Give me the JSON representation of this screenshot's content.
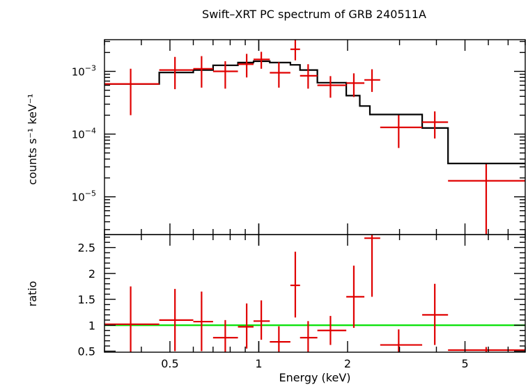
{
  "chart_data": [
    {
      "type": "scatter",
      "title": "Swift–XRT PC spectrum of GRB 240511A",
      "ylabel": "counts s⁻¹ keV⁻¹",
      "xscale": "log",
      "yscale": "log",
      "xlim": [
        0.3,
        8.0
      ],
      "ylim": [
        2.5e-06,
        0.0032
      ],
      "ytick_labels": [
        {
          "value": 0.001,
          "base": "10",
          "exp": "−3"
        },
        {
          "value": 0.0001,
          "base": "10",
          "exp": "−4"
        },
        {
          "value": 1e-05,
          "base": "10",
          "exp": "−5"
        }
      ],
      "series": [
        {
          "kind": "data",
          "color": "#e00000",
          "points": [
            {
              "x": 0.368,
              "xlo": 0.3,
              "xhi": 0.46,
              "y": 0.00063,
              "ylo": 0.0002,
              "yhi": 0.0011
            },
            {
              "x": 0.52,
              "xlo": 0.46,
              "xhi": 0.6,
              "y": 0.00105,
              "ylo": 0.00052,
              "yhi": 0.0017
            },
            {
              "x": 0.64,
              "xlo": 0.6,
              "xhi": 0.7,
              "y": 0.0011,
              "ylo": 0.00055,
              "yhi": 0.00175
            },
            {
              "x": 0.77,
              "xlo": 0.7,
              "xhi": 0.85,
              "y": 0.001,
              "ylo": 0.00053,
              "yhi": 0.00145
            },
            {
              "x": 0.91,
              "xlo": 0.85,
              "xhi": 0.96,
              "y": 0.0013,
              "ylo": 0.0008,
              "yhi": 0.0019
            },
            {
              "x": 1.02,
              "xlo": 0.96,
              "xhi": 1.09,
              "y": 0.00155,
              "ylo": 0.0011,
              "yhi": 0.00205
            },
            {
              "x": 1.17,
              "xlo": 1.09,
              "xhi": 1.28,
              "y": 0.00095,
              "ylo": 0.00055,
              "yhi": 0.0014
            },
            {
              "x": 1.33,
              "xlo": 1.28,
              "xhi": 1.38,
              "y": 0.00225,
              "ylo": 0.0015,
              "yhi": 0.0032
            },
            {
              "x": 1.47,
              "xlo": 1.38,
              "xhi": 1.58,
              "y": 0.00085,
              "ylo": 0.00053,
              "yhi": 0.0013
            },
            {
              "x": 1.75,
              "xlo": 1.58,
              "xhi": 1.98,
              "y": 0.0006,
              "ylo": 0.00038,
              "yhi": 0.00084
            },
            {
              "x": 2.1,
              "xlo": 1.98,
              "xhi": 2.28,
              "y": 0.00065,
              "ylo": 0.00039,
              "yhi": 0.00093
            },
            {
              "x": 2.42,
              "xlo": 2.28,
              "xhi": 2.58,
              "y": 0.00073,
              "ylo": 0.00047,
              "yhi": 0.00108
            },
            {
              "x": 2.98,
              "xlo": 2.58,
              "xhi": 3.58,
              "y": 0.000128,
              "ylo": 6e-05,
              "yhi": 0.0002
            },
            {
              "x": 3.95,
              "xlo": 3.58,
              "xhi": 4.38,
              "y": 0.000155,
              "ylo": 8.5e-05,
              "yhi": 0.00023
            },
            {
              "x": 5.9,
              "xlo": 4.38,
              "xhi": 8.0,
              "y": 1.8e-05,
              "ylo": 2.5e-06,
              "yhi": 3.3e-05
            }
          ]
        },
        {
          "kind": "model",
          "color": "#000000",
          "steps": [
            {
              "xlo": 0.3,
              "xhi": 0.46,
              "y": 0.00063
            },
            {
              "xlo": 0.46,
              "xhi": 0.6,
              "y": 0.00096
            },
            {
              "xlo": 0.6,
              "xhi": 0.7,
              "y": 0.00105
            },
            {
              "xlo": 0.7,
              "xhi": 0.85,
              "y": 0.00125
            },
            {
              "xlo": 0.85,
              "xhi": 0.96,
              "y": 0.00138
            },
            {
              "xlo": 0.96,
              "xhi": 1.09,
              "y": 0.00145
            },
            {
              "xlo": 1.09,
              "xhi": 1.28,
              "y": 0.00138
            },
            {
              "xlo": 1.28,
              "xhi": 1.38,
              "y": 0.00127
            },
            {
              "xlo": 1.38,
              "xhi": 1.58,
              "y": 0.00105
            },
            {
              "xlo": 1.58,
              "xhi": 1.98,
              "y": 0.00066
            },
            {
              "xlo": 1.98,
              "xhi": 2.2,
              "y": 0.00041
            },
            {
              "xlo": 2.2,
              "xhi": 2.38,
              "y": 0.00028
            },
            {
              "xlo": 2.38,
              "xhi": 2.58,
              "y": 0.000205
            },
            {
              "xlo": 2.58,
              "xhi": 3.58,
              "y": 0.000205
            },
            {
              "xlo": 3.58,
              "xhi": 4.38,
              "y": 0.000125
            },
            {
              "xlo": 4.38,
              "xhi": 8.0,
              "y": 3.4e-05
            }
          ]
        }
      ]
    },
    {
      "type": "scatter",
      "xlabel": "Energy (keV)",
      "ylabel": "ratio",
      "xscale": "log",
      "yscale": "linear",
      "xlim": [
        0.3,
        8.0
      ],
      "ylim": [
        0.48,
        2.75
      ],
      "xticks": [
        {
          "value": 0.5,
          "label": "0.5"
        },
        {
          "value": 1,
          "label": "1"
        },
        {
          "value": 2,
          "label": "2"
        },
        {
          "value": 5,
          "label": "5"
        }
      ],
      "yticks": [
        {
          "value": 0.5,
          "label": "0.5"
        },
        {
          "value": 1,
          "label": "1"
        },
        {
          "value": 1.5,
          "label": "1.5"
        },
        {
          "value": 2,
          "label": "2"
        },
        {
          "value": 2.5,
          "label": "2.5"
        }
      ],
      "reference_line": {
        "y": 1.0,
        "color": "#00e000"
      },
      "series": [
        {
          "kind": "data",
          "color": "#e00000",
          "points": [
            {
              "x": 0.368,
              "xlo": 0.3,
              "xhi": 0.46,
              "y": 1.02,
              "ylo": 0.48,
              "yhi": 1.75
            },
            {
              "x": 0.52,
              "xlo": 0.46,
              "xhi": 0.6,
              "y": 1.1,
              "ylo": 0.5,
              "yhi": 1.7
            },
            {
              "x": 0.64,
              "xlo": 0.6,
              "xhi": 0.7,
              "y": 1.07,
              "ylo": 0.5,
              "yhi": 1.65
            },
            {
              "x": 0.77,
              "xlo": 0.7,
              "xhi": 0.85,
              "y": 0.76,
              "ylo": 0.48,
              "yhi": 1.1
            },
            {
              "x": 0.91,
              "xlo": 0.85,
              "xhi": 0.96,
              "y": 0.97,
              "ylo": 0.55,
              "yhi": 1.42
            },
            {
              "x": 1.02,
              "xlo": 0.96,
              "xhi": 1.09,
              "y": 1.08,
              "ylo": 0.72,
              "yhi": 1.48
            },
            {
              "x": 1.17,
              "xlo": 1.09,
              "xhi": 1.28,
              "y": 0.68,
              "ylo": 0.48,
              "yhi": 0.98
            },
            {
              "x": 1.33,
              "xlo": 1.28,
              "xhi": 1.38,
              "y": 1.77,
              "ylo": 1.15,
              "yhi": 2.42
            },
            {
              "x": 1.47,
              "xlo": 1.38,
              "xhi": 1.58,
              "y": 0.76,
              "ylo": 0.48,
              "yhi": 1.08
            },
            {
              "x": 1.75,
              "xlo": 1.58,
              "xhi": 1.98,
              "y": 0.9,
              "ylo": 0.62,
              "yhi": 1.18
            },
            {
              "x": 2.1,
              "xlo": 1.98,
              "xhi": 2.28,
              "y": 1.55,
              "ylo": 0.95,
              "yhi": 2.15
            },
            {
              "x": 2.42,
              "xlo": 2.28,
              "xhi": 2.58,
              "y": 2.68,
              "ylo": 1.55,
              "yhi": 2.75
            },
            {
              "x": 2.98,
              "xlo": 2.58,
              "xhi": 3.58,
              "y": 0.62,
              "ylo": 0.48,
              "yhi": 0.92
            },
            {
              "x": 3.95,
              "xlo": 3.58,
              "xhi": 4.38,
              "y": 1.2,
              "ylo": 0.62,
              "yhi": 1.8
            },
            {
              "x": 5.9,
              "xlo": 4.38,
              "xhi": 8.0,
              "y": 0.52,
              "ylo": 0.48,
              "yhi": 0.58
            }
          ]
        }
      ]
    }
  ]
}
